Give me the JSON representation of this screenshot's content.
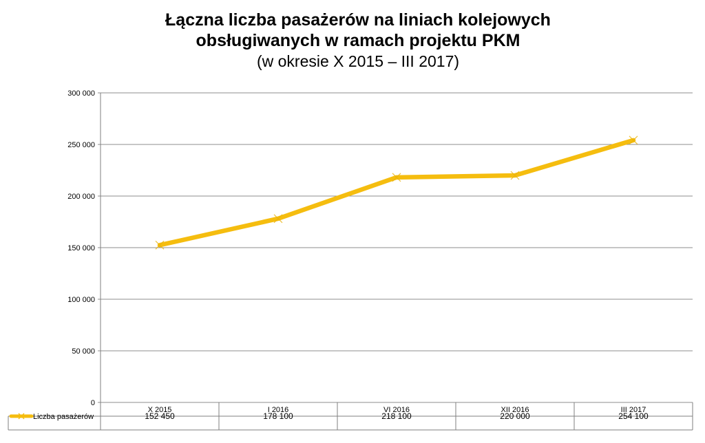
{
  "title_line1": "Łączna liczba pasażerów na liniach kolejowych",
  "title_line2": "obsługiwanych w ramach projektu PKM",
  "subtitle": "(w okresie X 2015 – III 2017)",
  "colors": {
    "series": "#F5BD0F",
    "grid": "#8C8C8C",
    "axis": "#7F7F7F"
  },
  "chart_data": {
    "type": "line",
    "categories": [
      "X 2015",
      "I 2016",
      "VI 2016",
      "XII 2016",
      "III 2017"
    ],
    "series": [
      {
        "name": "Liczba pasażerów",
        "values": [
          152450,
          178100,
          218100,
          220000,
          254100
        ]
      }
    ],
    "value_labels": [
      "152 450",
      "178 100",
      "218 100",
      "220 000",
      "254 100"
    ],
    "yticks": [
      0,
      50000,
      100000,
      150000,
      200000,
      250000,
      300000
    ],
    "ytick_labels": [
      "0",
      "50 000",
      "100 000",
      "150 000",
      "200 000",
      "250 000",
      "300 000"
    ],
    "ylim": [
      0,
      300000
    ],
    "grid": true,
    "data_table": true,
    "legend_position": "data-table-left",
    "marker": "x"
  }
}
